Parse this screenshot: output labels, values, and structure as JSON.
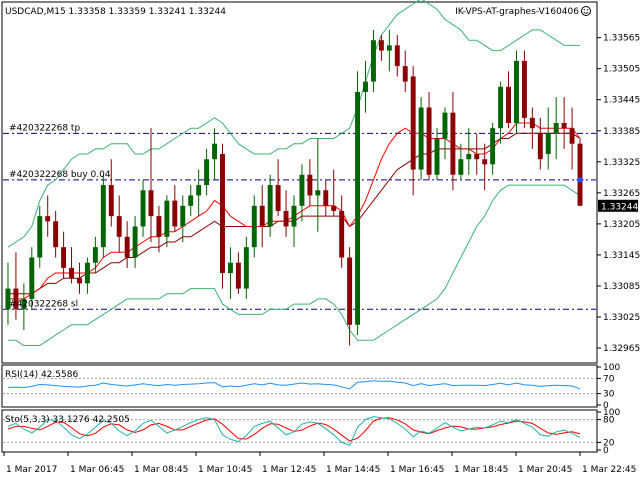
{
  "symbol_info": "USDCAD,M15  1.33358 1.33359 1.33241 1.33244",
  "watermark": "IK-VPS-AT-graphes-V160406",
  "current_price": "1.33244",
  "order_lines": {
    "tp": "#420322268 tp",
    "buy": "#420322268 buy 0.04",
    "sl": "#420322268 sl"
  },
  "rsi_label": "RSI(14) 42.5586",
  "sto_label": "Sto(5,3,3) 33.1276 42.2505",
  "colors": {
    "bull": "#006400",
    "bear": "#8b0000",
    "bands": "#3cb371",
    "ma_red": "#ff0000",
    "ma_brown": "#8b0000",
    "order_line": "#000080",
    "rsi": "#1e90ff",
    "sto_main": "#20b2aa",
    "sto_signal": "#ff0000",
    "price_box": "#000000"
  },
  "chart_data": [
    {
      "type": "candlestick",
      "title": "USDCAD,M15",
      "ylim": [
        1.3294,
        1.3363
      ],
      "price_ticks": [
        "1.33565",
        "1.33505",
        "1.33445",
        "1.33385",
        "1.33325",
        "1.33265",
        "1.33205",
        "1.33145",
        "1.33085",
        "1.33025",
        "1.32965"
      ],
      "time_labels": [
        "1 Mar 2017",
        "1 Mar 06:45",
        "1 Mar 08:45",
        "1 Mar 10:45",
        "1 Mar 12:45",
        "1 Mar 14:45",
        "1 Mar 16:45",
        "1 Mar 18:45",
        "1 Mar 20:45",
        "1 Mar 22:45"
      ],
      "order_levels": {
        "tp": 1.3338,
        "buy": 1.3329,
        "sl": 1.3304
      },
      "candles": [
        {
          "o": 1.3304,
          "h": 1.3313,
          "l": 1.3301,
          "c": 1.3308
        },
        {
          "o": 1.3308,
          "h": 1.3315,
          "l": 1.3302,
          "c": 1.3304
        },
        {
          "o": 1.3304,
          "h": 1.3309,
          "l": 1.33,
          "c": 1.3306
        },
        {
          "o": 1.3306,
          "h": 1.3316,
          "l": 1.3304,
          "c": 1.3314
        },
        {
          "o": 1.3314,
          "h": 1.3324,
          "l": 1.3312,
          "c": 1.3322
        },
        {
          "o": 1.3322,
          "h": 1.3326,
          "l": 1.3318,
          "c": 1.3321
        },
        {
          "o": 1.3321,
          "h": 1.3323,
          "l": 1.3314,
          "c": 1.3316
        },
        {
          "o": 1.3316,
          "h": 1.3319,
          "l": 1.331,
          "c": 1.3312
        },
        {
          "o": 1.3312,
          "h": 1.3316,
          "l": 1.3309,
          "c": 1.331
        },
        {
          "o": 1.331,
          "h": 1.3313,
          "l": 1.3307,
          "c": 1.3309
        },
        {
          "o": 1.3309,
          "h": 1.3314,
          "l": 1.3307,
          "c": 1.3313
        },
        {
          "o": 1.3313,
          "h": 1.3318,
          "l": 1.3311,
          "c": 1.3316
        },
        {
          "o": 1.3316,
          "h": 1.333,
          "l": 1.3314,
          "c": 1.3328
        },
        {
          "o": 1.3328,
          "h": 1.3333,
          "l": 1.332,
          "c": 1.3322
        },
        {
          "o": 1.3322,
          "h": 1.3326,
          "l": 1.3315,
          "c": 1.3318
        },
        {
          "o": 1.3318,
          "h": 1.3321,
          "l": 1.3312,
          "c": 1.3314
        },
        {
          "o": 1.3314,
          "h": 1.3322,
          "l": 1.3312,
          "c": 1.332
        },
        {
          "o": 1.332,
          "h": 1.3329,
          "l": 1.3318,
          "c": 1.3327
        },
        {
          "o": 1.3327,
          "h": 1.3339,
          "l": 1.3317,
          "c": 1.3322
        },
        {
          "o": 1.3322,
          "h": 1.3324,
          "l": 1.3315,
          "c": 1.3318
        },
        {
          "o": 1.3318,
          "h": 1.3326,
          "l": 1.3316,
          "c": 1.3325
        },
        {
          "o": 1.3325,
          "h": 1.3328,
          "l": 1.3319,
          "c": 1.332
        },
        {
          "o": 1.332,
          "h": 1.3326,
          "l": 1.3317,
          "c": 1.3324
        },
        {
          "o": 1.3324,
          "h": 1.3328,
          "l": 1.3322,
          "c": 1.3326
        },
        {
          "o": 1.3326,
          "h": 1.3331,
          "l": 1.3322,
          "c": 1.3328
        },
        {
          "o": 1.3328,
          "h": 1.3335,
          "l": 1.3326,
          "c": 1.3333
        },
        {
          "o": 1.3333,
          "h": 1.3339,
          "l": 1.3329,
          "c": 1.3336
        },
        {
          "o": 1.3334,
          "h": 1.3336,
          "l": 1.3308,
          "c": 1.3311
        },
        {
          "o": 1.3311,
          "h": 1.3316,
          "l": 1.3306,
          "c": 1.3313
        },
        {
          "o": 1.3313,
          "h": 1.3315,
          "l": 1.3307,
          "c": 1.3308
        },
        {
          "o": 1.3308,
          "h": 1.3318,
          "l": 1.3306,
          "c": 1.3316
        },
        {
          "o": 1.3316,
          "h": 1.3326,
          "l": 1.3314,
          "c": 1.3324
        },
        {
          "o": 1.3324,
          "h": 1.3328,
          "l": 1.3316,
          "c": 1.332
        },
        {
          "o": 1.332,
          "h": 1.333,
          "l": 1.3318,
          "c": 1.3328
        },
        {
          "o": 1.3328,
          "h": 1.3333,
          "l": 1.3322,
          "c": 1.3323
        },
        {
          "o": 1.3323,
          "h": 1.3327,
          "l": 1.3318,
          "c": 1.332
        },
        {
          "o": 1.332,
          "h": 1.3326,
          "l": 1.3316,
          "c": 1.3324
        },
        {
          "o": 1.3324,
          "h": 1.3332,
          "l": 1.3321,
          "c": 1.333
        },
        {
          "o": 1.333,
          "h": 1.3333,
          "l": 1.3324,
          "c": 1.3326
        },
        {
          "o": 1.3326,
          "h": 1.3337,
          "l": 1.3319,
          "c": 1.3327
        },
        {
          "o": 1.3327,
          "h": 1.3329,
          "l": 1.3322,
          "c": 1.3324
        },
        {
          "o": 1.3324,
          "h": 1.3331,
          "l": 1.3322,
          "c": 1.3323
        },
        {
          "o": 1.3323,
          "h": 1.3326,
          "l": 1.3312,
          "c": 1.3314
        },
        {
          "o": 1.3314,
          "h": 1.3316,
          "l": 1.3297,
          "c": 1.3301
        },
        {
          "o": 1.3301,
          "h": 1.335,
          "l": 1.3299,
          "c": 1.3346
        },
        {
          "o": 1.3346,
          "h": 1.3352,
          "l": 1.3342,
          "c": 1.3348
        },
        {
          "o": 1.3348,
          "h": 1.3358,
          "l": 1.3346,
          "c": 1.3356
        },
        {
          "o": 1.3356,
          "h": 1.3357,
          "l": 1.3352,
          "c": 1.3354
        },
        {
          "o": 1.3354,
          "h": 1.3358,
          "l": 1.335,
          "c": 1.3355
        },
        {
          "o": 1.3355,
          "h": 1.3357,
          "l": 1.3349,
          "c": 1.3351
        },
        {
          "o": 1.3351,
          "h": 1.3354,
          "l": 1.3346,
          "c": 1.3348
        },
        {
          "o": 1.3349,
          "h": 1.3351,
          "l": 1.3326,
          "c": 1.3331
        },
        {
          "o": 1.3331,
          "h": 1.3345,
          "l": 1.3329,
          "c": 1.3343
        },
        {
          "o": 1.3343,
          "h": 1.3346,
          "l": 1.3329,
          "c": 1.333
        },
        {
          "o": 1.333,
          "h": 1.3339,
          "l": 1.3329,
          "c": 1.3337
        },
        {
          "o": 1.3337,
          "h": 1.3343,
          "l": 1.3333,
          "c": 1.3342
        },
        {
          "o": 1.3342,
          "h": 1.3346,
          "l": 1.3327,
          "c": 1.333
        },
        {
          "o": 1.333,
          "h": 1.3336,
          "l": 1.3329,
          "c": 1.3333
        },
        {
          "o": 1.3333,
          "h": 1.3339,
          "l": 1.333,
          "c": 1.3334
        },
        {
          "o": 1.3334,
          "h": 1.3338,
          "l": 1.333,
          "c": 1.3333
        },
        {
          "o": 1.3333,
          "h": 1.3336,
          "l": 1.3327,
          "c": 1.3332
        },
        {
          "o": 1.3332,
          "h": 1.334,
          "l": 1.333,
          "c": 1.3339
        },
        {
          "o": 1.3339,
          "h": 1.3348,
          "l": 1.3336,
          "c": 1.3347
        },
        {
          "o": 1.3347,
          "h": 1.335,
          "l": 1.3339,
          "c": 1.334
        },
        {
          "o": 1.334,
          "h": 1.3354,
          "l": 1.3338,
          "c": 1.3352
        },
        {
          "o": 1.3352,
          "h": 1.3354,
          "l": 1.3339,
          "c": 1.3341
        },
        {
          "o": 1.3341,
          "h": 1.3343,
          "l": 1.3335,
          "c": 1.3339
        },
        {
          "o": 1.3338,
          "h": 1.3341,
          "l": 1.3331,
          "c": 1.3333
        },
        {
          "o": 1.3334,
          "h": 1.3343,
          "l": 1.3331,
          "c": 1.3338
        },
        {
          "o": 1.3338,
          "h": 1.3345,
          "l": 1.3333,
          "c": 1.334
        },
        {
          "o": 1.334,
          "h": 1.3345,
          "l": 1.3335,
          "c": 1.3339
        },
        {
          "o": 1.3339,
          "h": 1.3343,
          "l": 1.3331,
          "c": 1.3336
        },
        {
          "o": 1.3336,
          "h": 1.3337,
          "l": 1.3324,
          "c": 1.3324
        }
      ],
      "bb_upper": [
        1.3316,
        1.3317,
        1.3318,
        1.332,
        1.3325,
        1.3328,
        1.3329,
        1.3331,
        1.3333,
        1.3334,
        1.3334,
        1.3335,
        1.3335,
        1.3336,
        1.3336,
        1.3336,
        1.3334,
        1.3334,
        1.3335,
        1.3335,
        1.3336,
        1.3337,
        1.3338,
        1.3339,
        1.3339,
        1.334,
        1.3341,
        1.334,
        1.3338,
        1.3336,
        1.3335,
        1.3334,
        1.3334,
        1.3334,
        1.3335,
        1.3335,
        1.3336,
        1.3336,
        1.3337,
        1.3337,
        1.3337,
        1.3337,
        1.3338,
        1.3339,
        1.3343,
        1.3348,
        1.3353,
        1.3357,
        1.3359,
        1.3361,
        1.3362,
        1.3363,
        1.3364,
        1.3363,
        1.3362,
        1.336,
        1.3359,
        1.3358,
        1.3356,
        1.3356,
        1.3355,
        1.3354,
        1.3354,
        1.3355,
        1.3356,
        1.3357,
        1.3358,
        1.3358,
        1.3357,
        1.3356,
        1.3355,
        1.3355,
        1.3355
      ],
      "bb_lower": [
        1.3298,
        1.3298,
        1.3297,
        1.3297,
        1.3297,
        1.3298,
        1.3299,
        1.33,
        1.3301,
        1.3301,
        1.3301,
        1.3302,
        1.3303,
        1.3304,
        1.3305,
        1.3306,
        1.3306,
        1.3306,
        1.3306,
        1.3306,
        1.3307,
        1.3307,
        1.3307,
        1.3308,
        1.3308,
        1.3308,
        1.3308,
        1.3305,
        1.3304,
        1.3303,
        1.3303,
        1.3303,
        1.3303,
        1.3304,
        1.3304,
        1.3304,
        1.3305,
        1.3305,
        1.3305,
        1.3306,
        1.3306,
        1.3305,
        1.3303,
        1.33,
        1.3298,
        1.3298,
        1.3298,
        1.3299,
        1.33,
        1.3301,
        1.3302,
        1.3303,
        1.3304,
        1.3305,
        1.3306,
        1.3308,
        1.3311,
        1.3314,
        1.3317,
        1.332,
        1.3322,
        1.3325,
        1.3327,
        1.3328,
        1.3328,
        1.3328,
        1.3328,
        1.3328,
        1.3328,
        1.3328,
        1.3328,
        1.3327,
        1.3326
      ],
      "ma_fast": [
        1.3306,
        1.3306,
        1.3306,
        1.3307,
        1.3308,
        1.331,
        1.3311,
        1.3311,
        1.3311,
        1.3311,
        1.3311,
        1.3312,
        1.3314,
        1.3315,
        1.3315,
        1.3315,
        1.3316,
        1.3317,
        1.3318,
        1.3318,
        1.3319,
        1.3319,
        1.332,
        1.3321,
        1.3322,
        1.3323,
        1.3325,
        1.3324,
        1.3322,
        1.3321,
        1.332,
        1.332,
        1.332,
        1.3321,
        1.3321,
        1.3321,
        1.3322,
        1.3323,
        1.3324,
        1.3324,
        1.3324,
        1.3324,
        1.3323,
        1.332,
        1.3322,
        1.3325,
        1.3329,
        1.3333,
        1.3336,
        1.3338,
        1.3339,
        1.3338,
        1.3338,
        1.3337,
        1.3337,
        1.3337,
        1.3336,
        1.3335,
        1.3335,
        1.3334,
        1.3334,
        1.3335,
        1.3337,
        1.3338,
        1.334,
        1.334,
        1.334,
        1.3339,
        1.3339,
        1.3339,
        1.3339,
        1.3339,
        1.3337
      ],
      "ma_slow": [
        1.3307,
        1.3307,
        1.3307,
        1.3307,
        1.3308,
        1.3309,
        1.3309,
        1.331,
        1.331,
        1.331,
        1.3311,
        1.3311,
        1.3312,
        1.3313,
        1.3313,
        1.3314,
        1.3314,
        1.3315,
        1.3316,
        1.3316,
        1.3317,
        1.3317,
        1.3318,
        1.3318,
        1.3319,
        1.332,
        1.3321,
        1.332,
        1.332,
        1.332,
        1.332,
        1.332,
        1.332,
        1.332,
        1.3321,
        1.3321,
        1.3321,
        1.3322,
        1.3322,
        1.3322,
        1.3322,
        1.3322,
        1.3322,
        1.332,
        1.3321,
        1.3323,
        1.3325,
        1.3327,
        1.3329,
        1.3331,
        1.3332,
        1.3333,
        1.3334,
        1.3334,
        1.3335,
        1.3335,
        1.3335,
        1.3335,
        1.3335,
        1.3335,
        1.3335,
        1.3336,
        1.3337,
        1.3337,
        1.3338,
        1.3338,
        1.3338,
        1.3338,
        1.3338,
        1.3338,
        1.3338,
        1.3338,
        1.3337
      ]
    },
    {
      "type": "line",
      "title": "RSI(14) 42.5586",
      "ylim": [
        0,
        100
      ],
      "ticks": [
        "100",
        "70",
        "30",
        "0"
      ],
      "levels": [
        70,
        30
      ],
      "values": [
        46,
        47,
        46,
        49,
        54,
        53,
        51,
        49,
        48,
        47,
        50,
        52,
        58,
        54,
        52,
        50,
        53,
        56,
        53,
        51,
        54,
        52,
        54,
        55,
        56,
        58,
        59,
        48,
        50,
        48,
        52,
        56,
        53,
        57,
        53,
        52,
        55,
        58,
        55,
        56,
        54,
        53,
        48,
        42,
        60,
        61,
        64,
        62,
        63,
        60,
        58,
        51,
        56,
        51,
        54,
        56,
        51,
        52,
        52,
        52,
        51,
        54,
        57,
        53,
        58,
        53,
        52,
        49,
        51,
        52,
        51,
        50,
        42.6
      ]
    },
    {
      "type": "line",
      "title": "Sto(5,3,3) 33.1276 42.2505",
      "ylim": [
        0,
        100
      ],
      "ticks": [
        "100",
        "80",
        "20",
        "0"
      ],
      "levels": [
        80,
        20
      ],
      "series": [
        {
          "values": [
            62,
            70,
            55,
            45,
            60,
            80,
            78,
            60,
            40,
            30,
            42,
            60,
            78,
            70,
            50,
            38,
            50,
            70,
            78,
            62,
            45,
            52,
            62,
            72,
            80,
            85,
            80,
            40,
            28,
            22,
            38,
            62,
            70,
            76,
            58,
            40,
            48,
            68,
            74,
            70,
            56,
            40,
            20,
            12,
            60,
            80,
            88,
            85,
            82,
            70,
            55,
            35,
            50,
            44,
            58,
            72,
            60,
            50,
            55,
            60,
            58,
            66,
            76,
            72,
            80,
            70,
            60,
            40,
            36,
            48,
            52,
            44,
            33.1
          ]
        },
        {
          "values": [
            55,
            62,
            62,
            57,
            53,
            62,
            73,
            73,
            59,
            43,
            37,
            44,
            60,
            69,
            66,
            53,
            46,
            53,
            66,
            70,
            62,
            53,
            53,
            62,
            71,
            79,
            82,
            68,
            49,
            30,
            29,
            41,
            57,
            69,
            68,
            58,
            49,
            52,
            63,
            71,
            67,
            55,
            39,
            24,
            31,
            51,
            76,
            84,
            85,
            79,
            69,
            53,
            47,
            43,
            51,
            58,
            63,
            61,
            55,
            55,
            58,
            61,
            67,
            71,
            76,
            74,
            70,
            57,
            45,
            41,
            45,
            48,
            42.3
          ]
        }
      ]
    }
  ]
}
